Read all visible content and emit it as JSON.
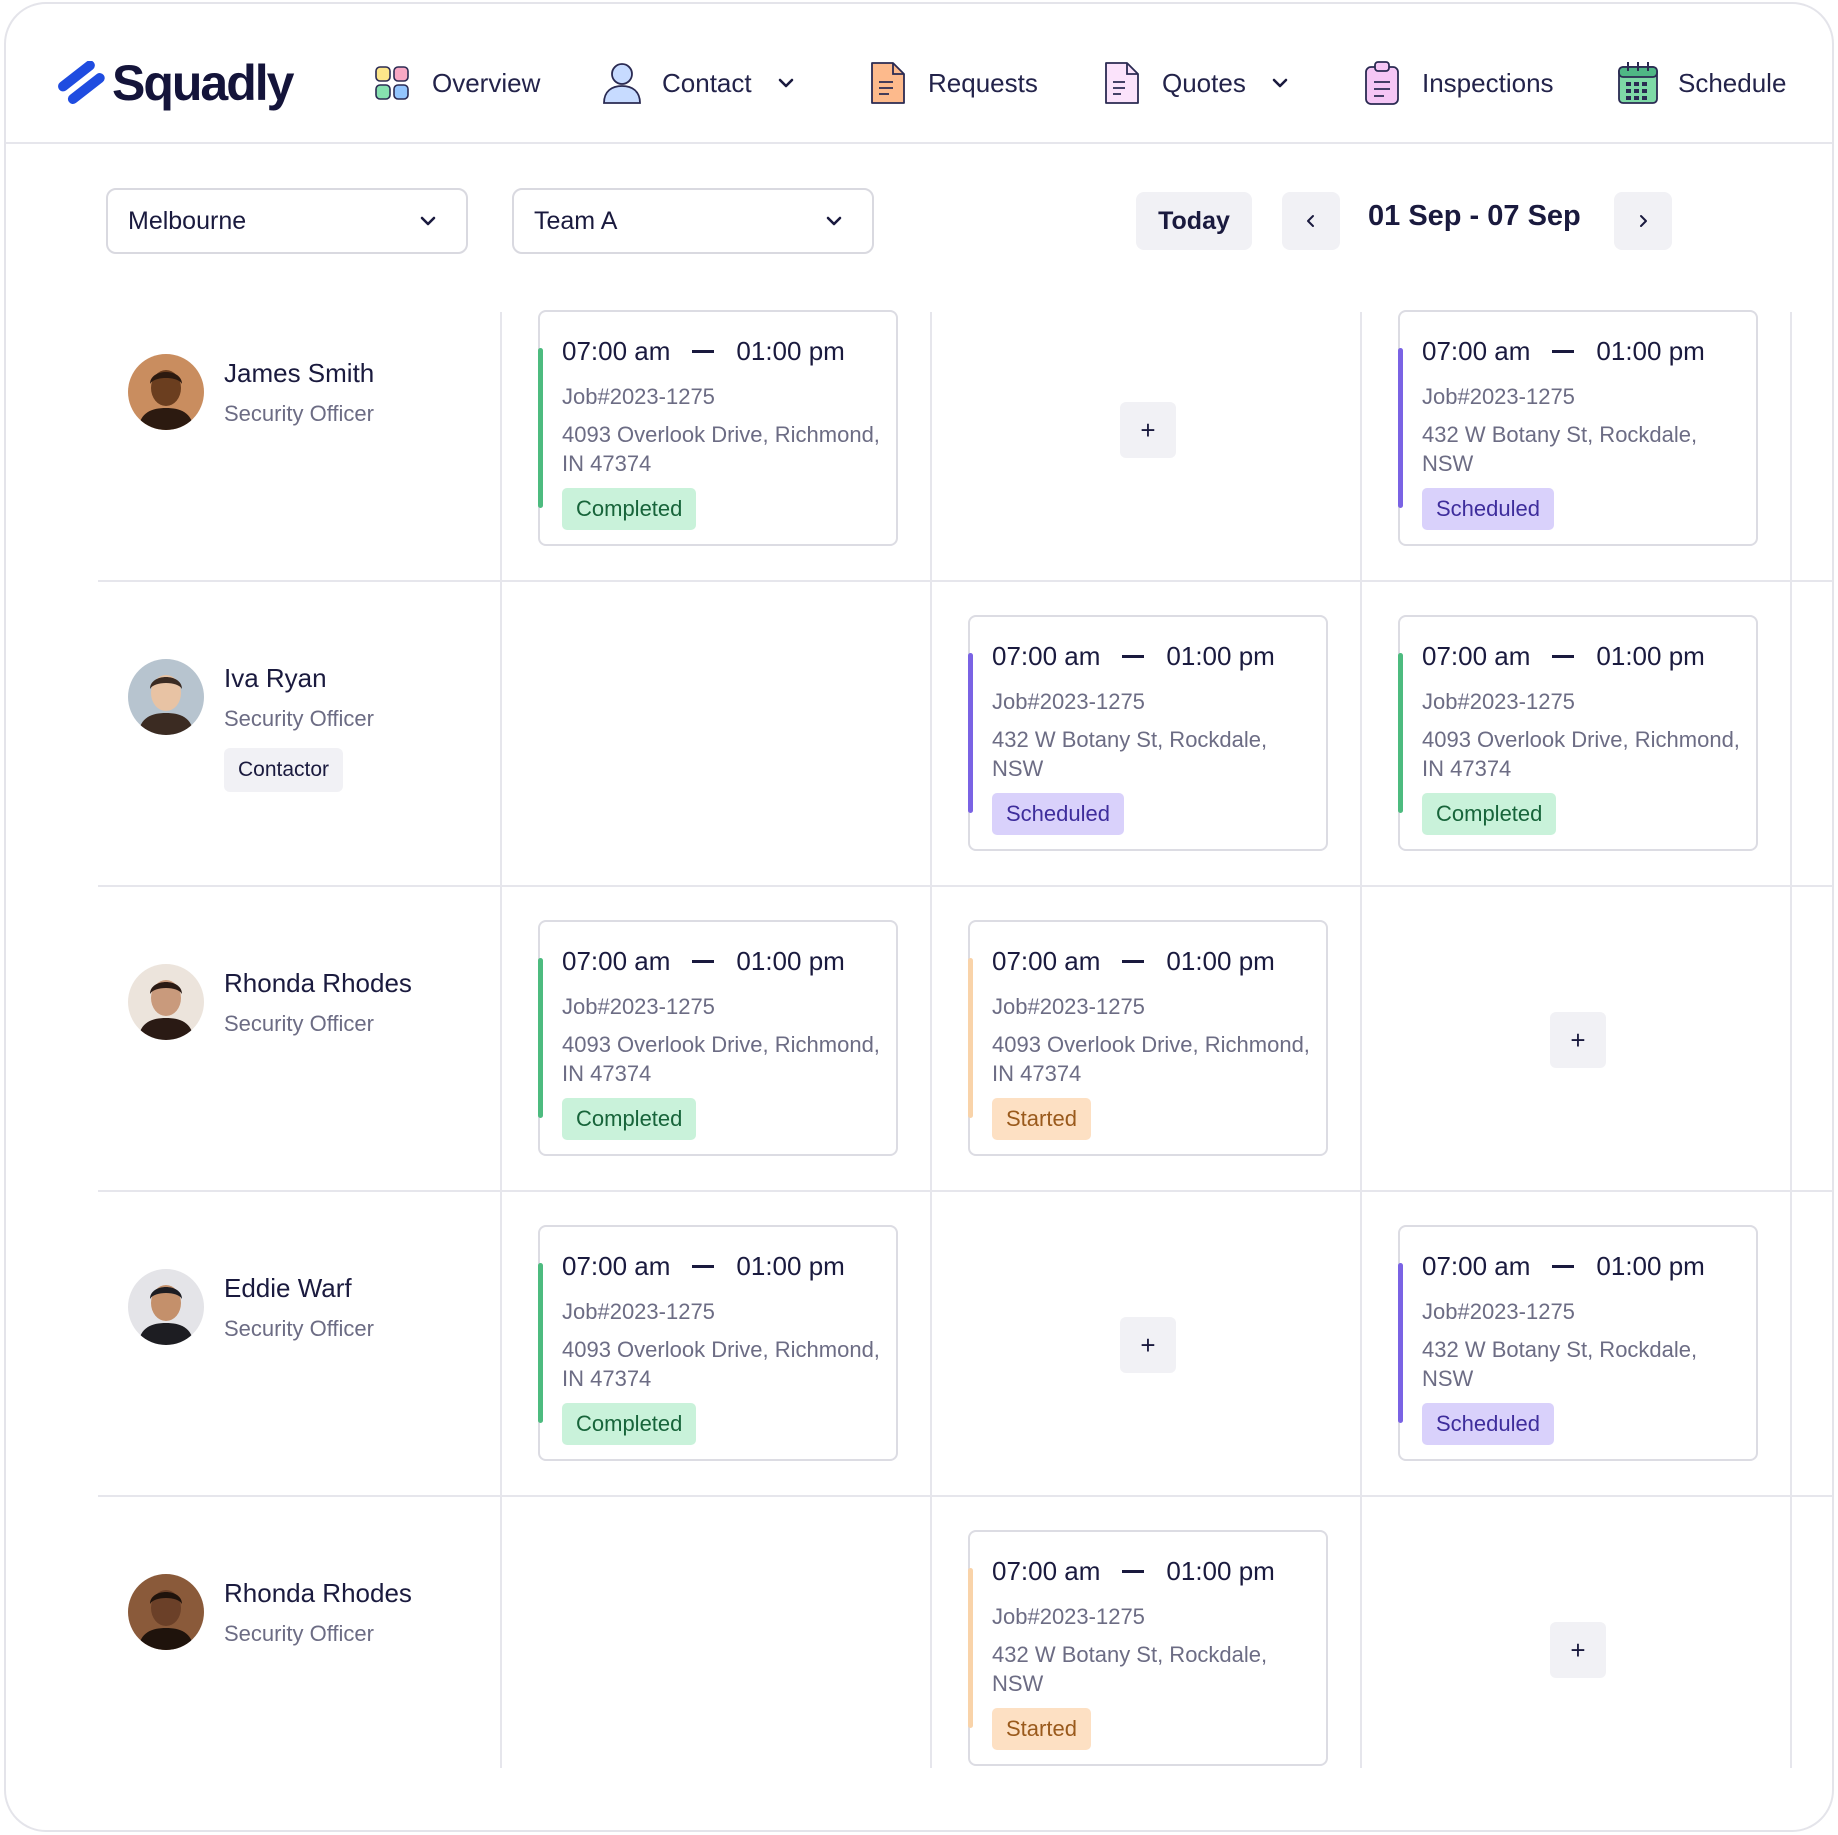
{
  "app": {
    "name": "Squadly"
  },
  "nav": {
    "overview": "Overview",
    "contact": "Contact",
    "requests": "Requests",
    "quotes": "Quotes",
    "inspections": "Inspections",
    "schedule": "Schedule"
  },
  "filters": {
    "location": "Melbourne",
    "team": "Team A",
    "today": "Today",
    "range": "01 Sep - 07 Sep"
  },
  "statuses": {
    "completed": "Completed",
    "scheduled": "Scheduled",
    "started": "Started"
  },
  "colors": {
    "completed_bg": "#c9f2da",
    "completed_fg": "#17643a",
    "completed_bar": "#4dbb7f",
    "scheduled_bg": "#d9d1fb",
    "scheduled_fg": "#3e2d9c",
    "scheduled_bar": "#7a63e4",
    "started_bg": "#fde0c3",
    "started_fg": "#9a5a1c",
    "started_bar": "#f9d3a9"
  },
  "rows": [
    {
      "name": "James Smith",
      "role": "Security Officer",
      "tag": null,
      "cells": [
        {
          "time_start": "07:00 am",
          "time_end": "01:00 pm",
          "job": "Job#2023-1275",
          "address": "4093 Overlook Drive, Richmond, IN 47374",
          "status": "Completed"
        },
        {
          "add": "+"
        },
        {
          "time_start": "07:00 am",
          "time_end": "01:00 pm",
          "job": "Job#2023-1275",
          "address": "432 W Botany St, Rockdale, NSW",
          "status": "Scheduled"
        }
      ]
    },
    {
      "name": "Iva Ryan",
      "role": "Security Officer",
      "tag": "Contactor",
      "cells": [
        null,
        {
          "time_start": "07:00 am",
          "time_end": "01:00 pm",
          "job": "Job#2023-1275",
          "address": "432 W Botany St, Rockdale, NSW",
          "status": "Scheduled"
        },
        {
          "time_start": "07:00 am",
          "time_end": "01:00 pm",
          "job": "Job#2023-1275",
          "address": "4093 Overlook Drive, Richmond, IN 47374",
          "status": "Completed"
        }
      ]
    },
    {
      "name": "Rhonda Rhodes",
      "role": "Security Officer",
      "tag": null,
      "cells": [
        {
          "time_start": "07:00 am",
          "time_end": "01:00 pm",
          "job": "Job#2023-1275",
          "address": "4093 Overlook Drive, Richmond, IN 47374",
          "status": "Completed"
        },
        {
          "time_start": "07:00 am",
          "time_end": "01:00 pm",
          "job": "Job#2023-1275",
          "address": "4093 Overlook Drive, Richmond, IN 47374",
          "status": "Started"
        },
        {
          "add": "+"
        }
      ]
    },
    {
      "name": "Eddie Warf",
      "role": "Security Officer",
      "tag": null,
      "cells": [
        {
          "time_start": "07:00 am",
          "time_end": "01:00 pm",
          "job": "Job#2023-1275",
          "address": "4093 Overlook Drive, Richmond, IN 47374",
          "status": "Completed"
        },
        {
          "add": "+"
        },
        {
          "time_start": "07:00 am",
          "time_end": "01:00 pm",
          "job": "Job#2023-1275",
          "address": "432 W Botany St, Rockdale, NSW",
          "status": "Scheduled"
        }
      ]
    },
    {
      "name": "Rhonda Rhodes",
      "role": "Security Officer",
      "tag": null,
      "cells": [
        null,
        {
          "time_start": "07:00 am",
          "time_end": "01:00 pm",
          "job": "Job#2023-1275",
          "address": "432 W Botany St, Rockdale, NSW",
          "status": "Started"
        },
        {
          "add": "+"
        }
      ]
    }
  ]
}
